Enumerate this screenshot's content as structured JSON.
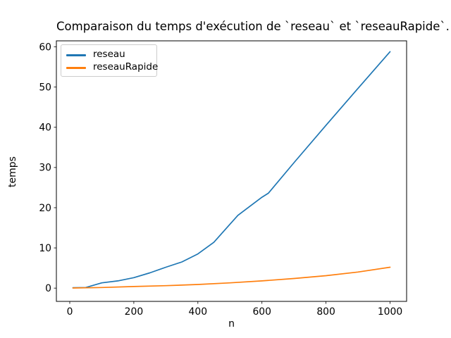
{
  "figure": {
    "title": "Comparaison du temps d'exécution de `reseau` et `reseauRapide`.",
    "xlabel": "n",
    "ylabel": "temps"
  },
  "legend": {
    "items": [
      {
        "label": "reseau",
        "color": "#1f77b4"
      },
      {
        "label": "reseauRapide",
        "color": "#ff7f0e"
      }
    ]
  },
  "chart_data": {
    "type": "line",
    "title": "Comparaison du temps d'exécution de `reseau` et `reseauRapide`.",
    "xlabel": "n",
    "ylabel": "temps",
    "xlim": [
      -41.8,
      1051.7
    ],
    "ylim": [
      -3.3,
      61.5
    ],
    "x_ticks": [
      0,
      200,
      400,
      600,
      800,
      1000
    ],
    "y_ticks": [
      0,
      10,
      20,
      30,
      40,
      50,
      60
    ],
    "grid": false,
    "legend_position": "upper left",
    "series": [
      {
        "name": "reseau",
        "color": "#1f77b4",
        "points": [
          [
            10,
            0.1
          ],
          [
            50,
            0.15
          ],
          [
            100,
            1.3
          ],
          [
            150,
            1.8
          ],
          [
            200,
            2.6
          ],
          [
            250,
            3.8
          ],
          [
            300,
            5.2
          ],
          [
            350,
            6.5
          ],
          [
            400,
            8.5
          ],
          [
            450,
            11.4
          ],
          [
            500,
            15.9
          ],
          [
            525,
            18.1
          ],
          [
            550,
            19.6
          ],
          [
            600,
            22.6
          ],
          [
            620,
            23.6
          ],
          [
            700,
            31.2
          ],
          [
            800,
            40.5
          ],
          [
            900,
            49.7
          ],
          [
            1000,
            58.8
          ]
        ]
      },
      {
        "name": "reseauRapide",
        "color": "#ff7f0e",
        "points": [
          [
            10,
            0.02
          ],
          [
            100,
            0.15
          ],
          [
            200,
            0.4
          ],
          [
            300,
            0.6
          ],
          [
            400,
            0.9
          ],
          [
            500,
            1.3
          ],
          [
            600,
            1.8
          ],
          [
            700,
            2.4
          ],
          [
            800,
            3.1
          ],
          [
            900,
            4.0
          ],
          [
            1000,
            5.2
          ]
        ]
      }
    ]
  }
}
